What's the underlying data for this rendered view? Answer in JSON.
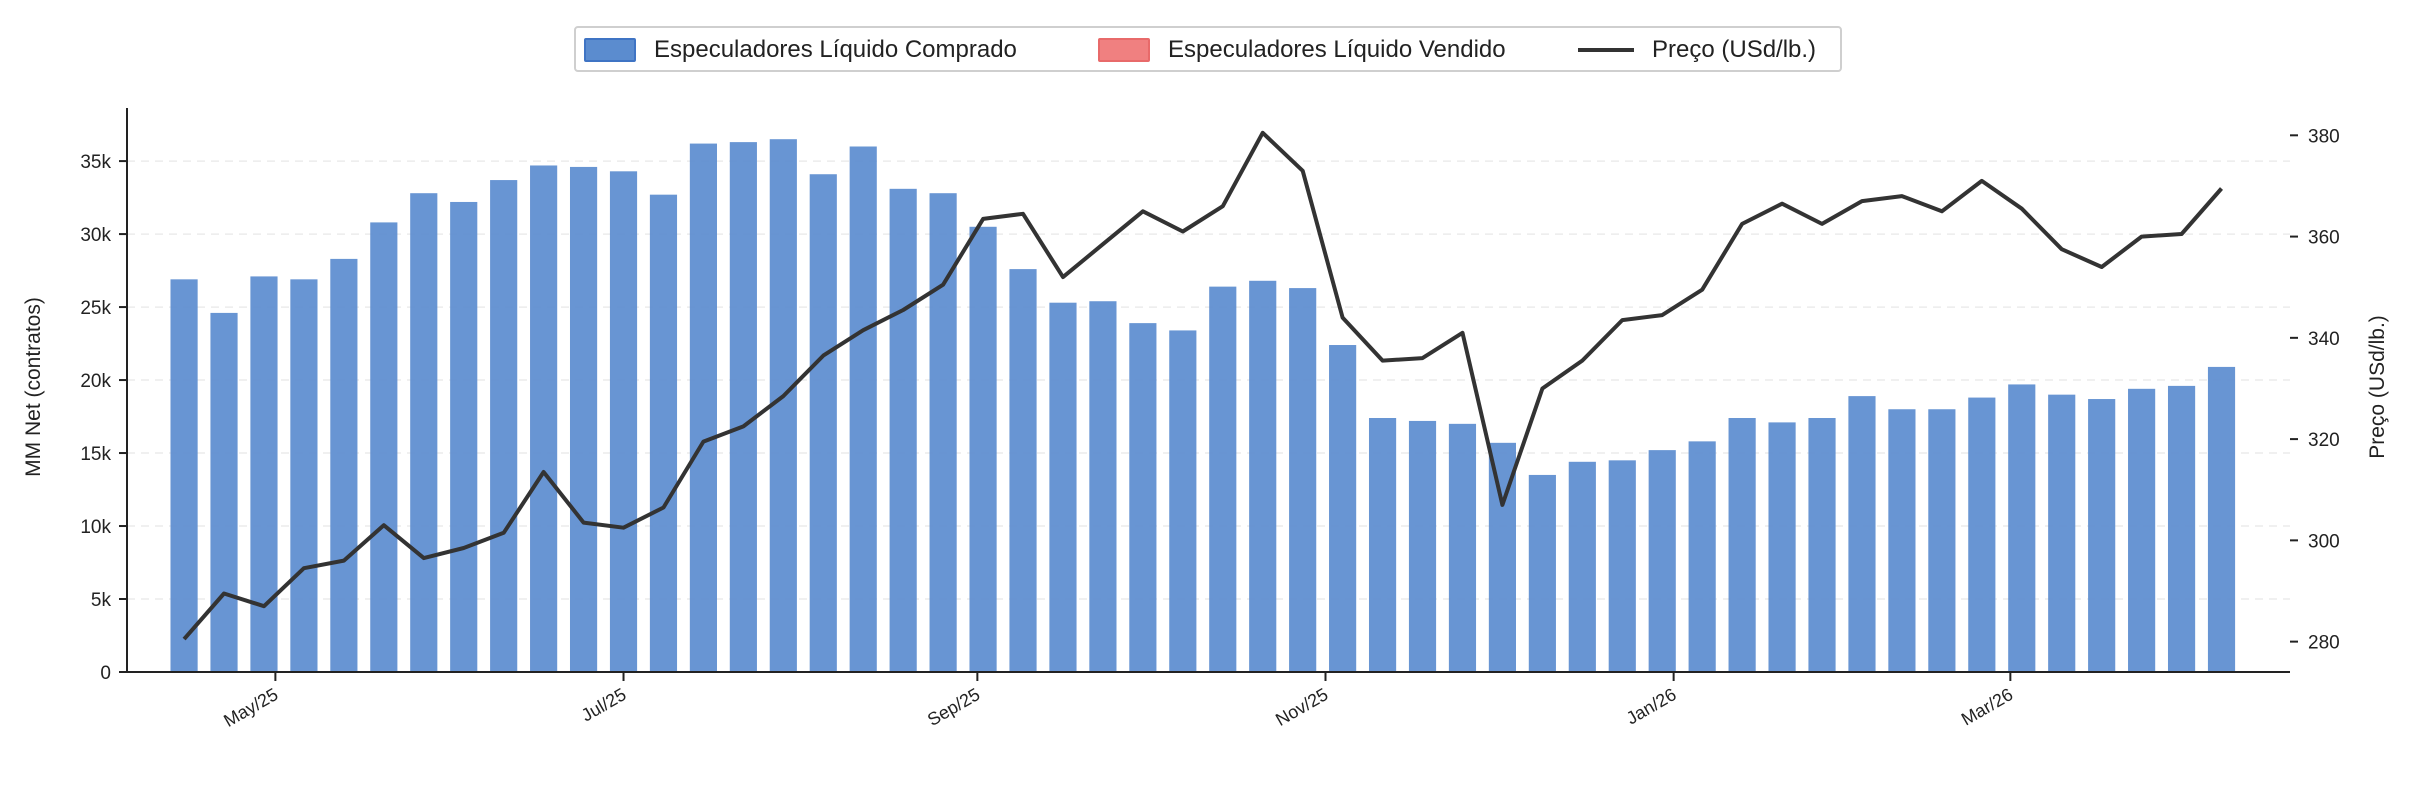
{
  "chart_data": {
    "type": "bar",
    "legend": {
      "placement": "top-center",
      "items": [
        {
          "label": "Especuladores Líquido Comprado",
          "color": "#5b8ccf",
          "kind": "bar"
        },
        {
          "label": "Especuladores Líquido Vendido",
          "color": "#f08080",
          "kind": "bar"
        },
        {
          "label": "Preço (USd/lb.)",
          "color": "#333333",
          "kind": "line"
        }
      ]
    },
    "ylabel_left": "MM Net (contratos)",
    "ylabel_right": "Preço (USd/lb.)",
    "ylim_left": [
      0,
      38500
    ],
    "ylim_right": [
      274,
      385
    ],
    "yticks_left": [
      {
        "value": 0,
        "label": "0"
      },
      {
        "value": 5000,
        "label": "5k"
      },
      {
        "value": 10000,
        "label": "10k"
      },
      {
        "value": 15000,
        "label": "15k"
      },
      {
        "value": 20000,
        "label": "20k"
      },
      {
        "value": 25000,
        "label": "25k"
      },
      {
        "value": 30000,
        "label": "30k"
      },
      {
        "value": 35000,
        "label": "35k"
      }
    ],
    "yticks_right": [
      {
        "value": 280,
        "label": "280"
      },
      {
        "value": 300,
        "label": "300"
      },
      {
        "value": 320,
        "label": "320"
      },
      {
        "value": 340,
        "label": "340"
      },
      {
        "value": 360,
        "label": "360"
      },
      {
        "value": 380,
        "label": "380"
      }
    ],
    "xlim": [
      "2025-04-05",
      "2026-04-19"
    ],
    "xticks": [
      {
        "date": "2025-05-01",
        "label": "May/25"
      },
      {
        "date": "2025-07-01",
        "label": "Jul/25"
      },
      {
        "date": "2025-09-01",
        "label": "Sep/25"
      },
      {
        "date": "2025-11-01",
        "label": "Nov/25"
      },
      {
        "date": "2026-01-01",
        "label": "Jan/26"
      },
      {
        "date": "2026-03-01",
        "label": "Mar/26"
      }
    ],
    "grid": "horizontal-dashed",
    "x": [
      "2025-04-15",
      "2025-04-22",
      "2025-04-29",
      "2025-05-06",
      "2025-05-13",
      "2025-05-20",
      "2025-05-27",
      "2025-06-03",
      "2025-06-10",
      "2025-06-17",
      "2025-06-24",
      "2025-07-01",
      "2025-07-08",
      "2025-07-15",
      "2025-07-22",
      "2025-07-29",
      "2025-08-05",
      "2025-08-12",
      "2025-08-19",
      "2025-08-26",
      "2025-09-02",
      "2025-09-09",
      "2025-09-16",
      "2025-09-23",
      "2025-09-30",
      "2025-10-07",
      "2025-10-14",
      "2025-10-21",
      "2025-10-28",
      "2025-11-04",
      "2025-11-11",
      "2025-11-18",
      "2025-11-25",
      "2025-12-02",
      "2025-12-09",
      "2025-12-16",
      "2025-12-23",
      "2025-12-30",
      "2026-01-06",
      "2026-01-13",
      "2026-01-20",
      "2026-01-27",
      "2026-02-03",
      "2026-02-10",
      "2026-02-17",
      "2026-02-24",
      "2026-03-03",
      "2026-03-10",
      "2026-03-17",
      "2026-03-24",
      "2026-03-31",
      "2026-04-07"
    ],
    "series": [
      {
        "name": "Especuladores Líquido Comprado",
        "kind": "bar",
        "axis": "left",
        "color": "#5b8ccf",
        "values": [
          26900,
          24600,
          27100,
          26900,
          28300,
          30800,
          32800,
          32200,
          33700,
          34700,
          34600,
          34300,
          32700,
          36200,
          36300,
          36500,
          34100,
          36000,
          33100,
          32800,
          30500,
          27600,
          25300,
          25400,
          23900,
          23400,
          26400,
          26800,
          26300,
          22400,
          17400,
          17200,
          17000,
          15700,
          13500,
          14400,
          14500,
          15200,
          15800,
          17400,
          17100,
          17400,
          18900,
          18000,
          18000,
          18800,
          19700,
          19000,
          18700,
          19400,
          19600,
          20900
        ]
      },
      {
        "name": "Preço (USd/lb.)",
        "kind": "line",
        "axis": "right",
        "color": "#333333",
        "values": [
          280.5,
          289.5,
          287,
          294.5,
          296,
          303,
          296.5,
          298.5,
          301.5,
          313.5,
          303.5,
          302.5,
          306.5,
          319.5,
          322.5,
          328.5,
          336.5,
          341.5,
          345.5,
          350.5,
          363.5,
          364.5,
          352,
          358.5,
          365,
          361,
          366,
          380.5,
          373,
          344,
          335.5,
          336,
          341,
          307,
          330,
          335.5,
          343.5,
          344.5,
          349.5,
          362.5,
          366.5,
          362.5,
          367,
          368,
          365,
          371,
          365.5,
          357.5,
          354,
          360,
          360.5,
          369.5
        ]
      }
    ]
  }
}
